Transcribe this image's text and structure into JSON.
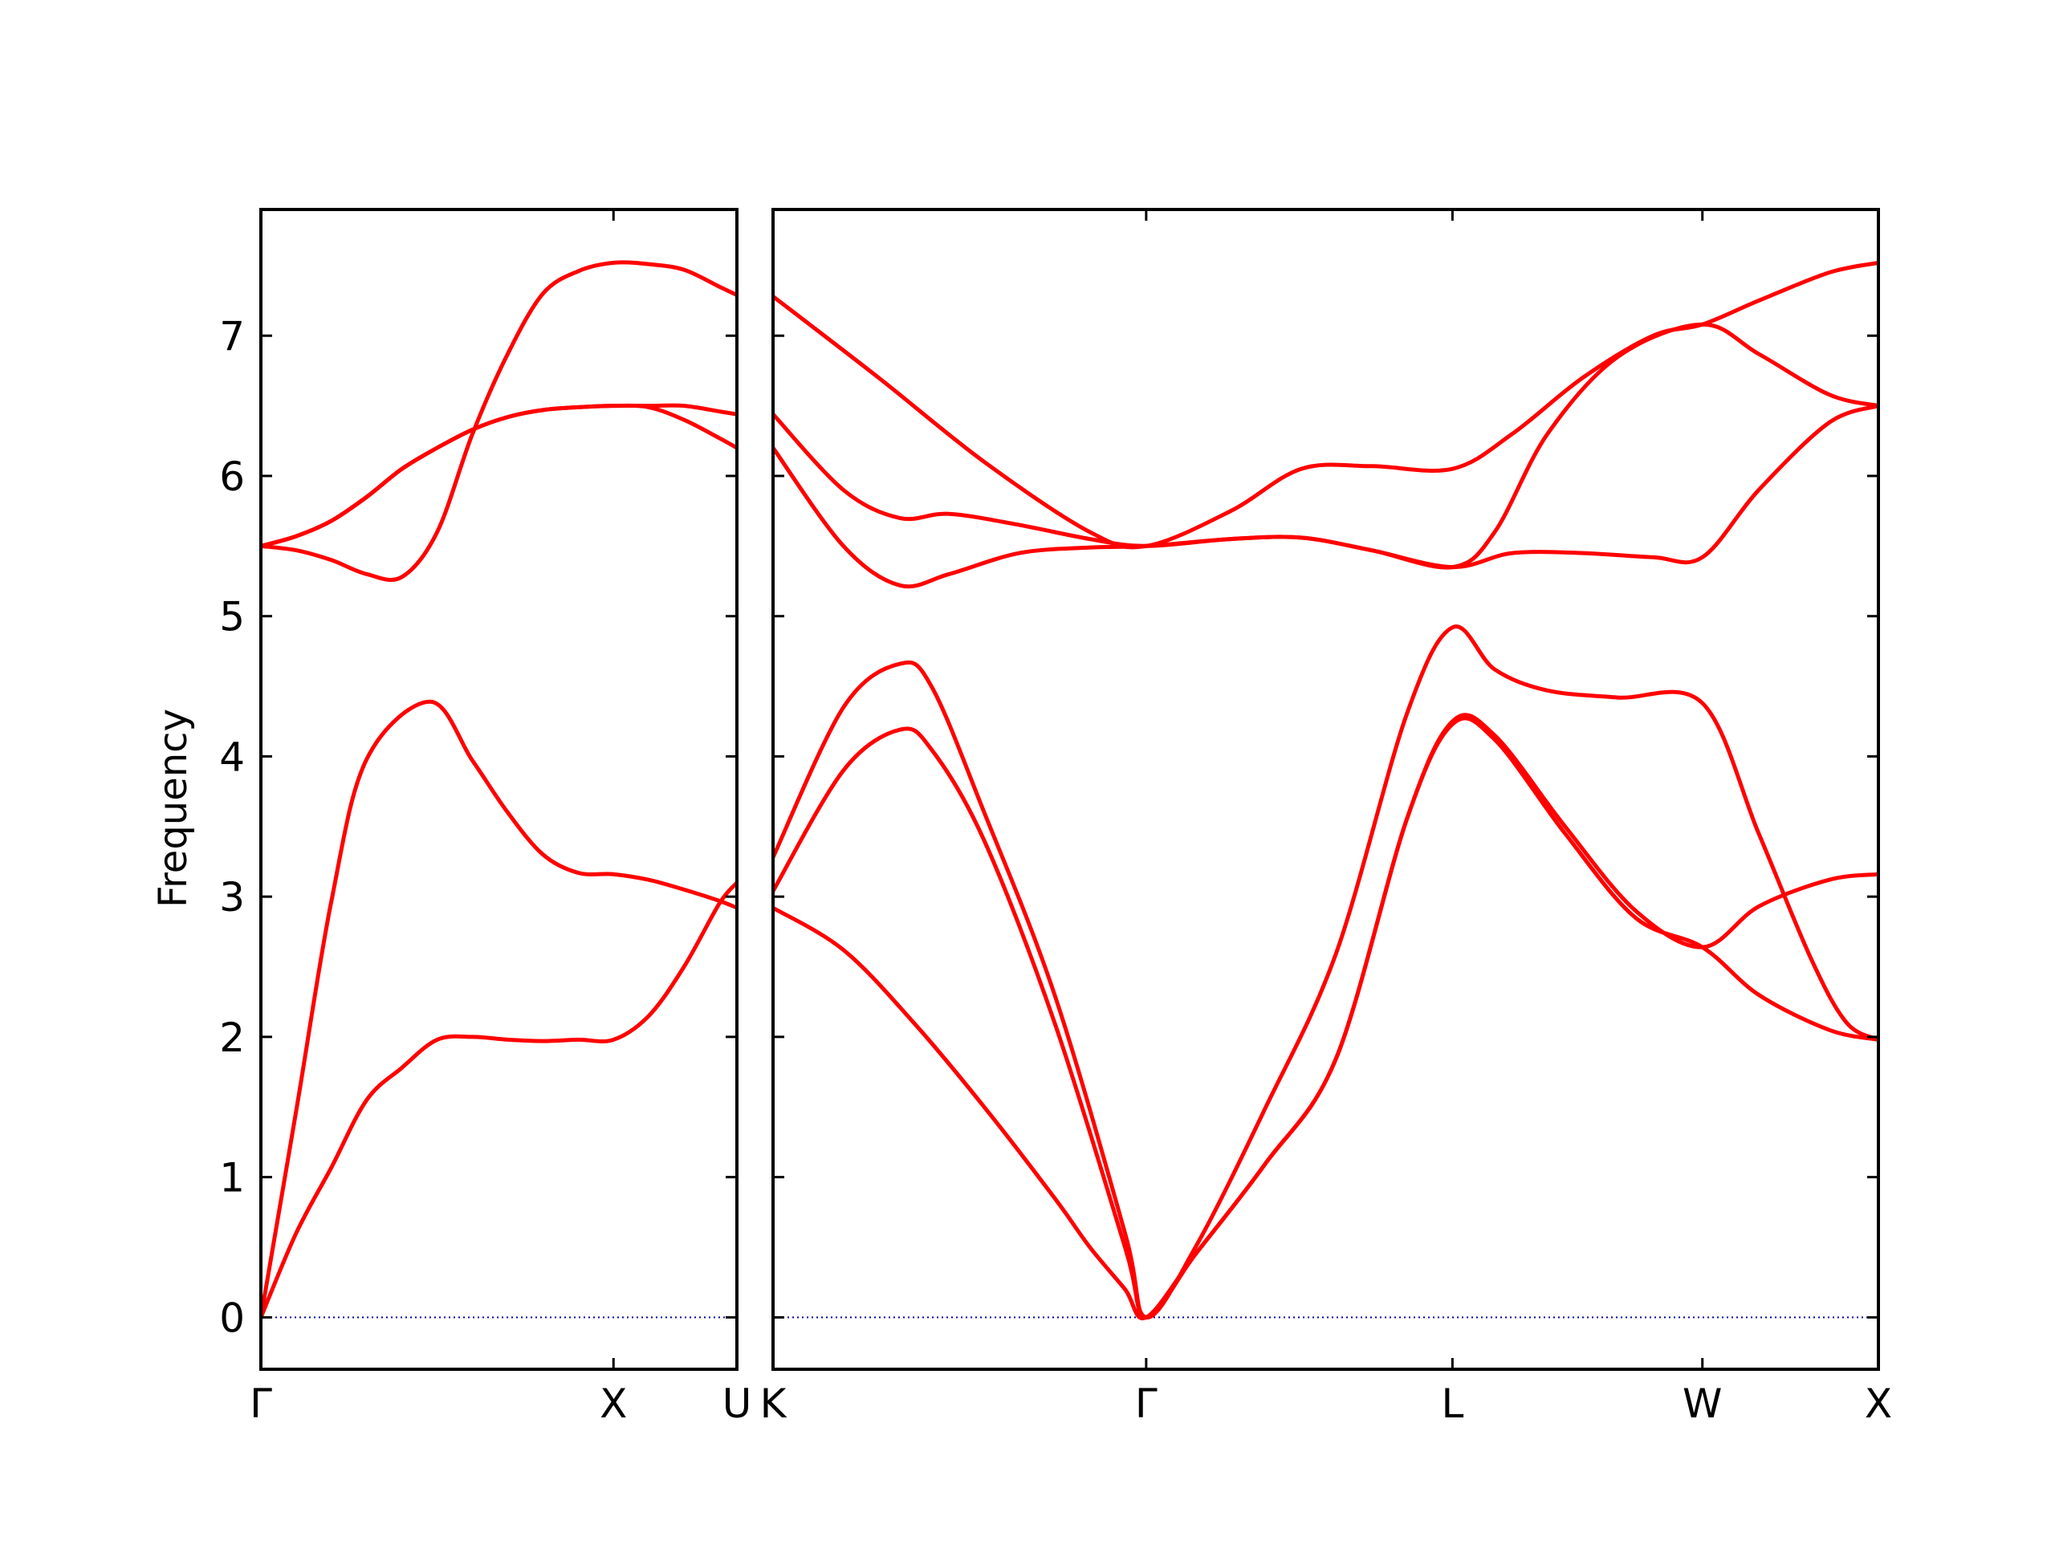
{
  "chart_data": {
    "type": "line",
    "title": "",
    "ylabel": "Frequency",
    "xlabel": "",
    "ylim": [
      -0.37,
      7.9
    ],
    "yticks": [
      0,
      1,
      2,
      3,
      4,
      5,
      6,
      7
    ],
    "grid": false,
    "legend": "none",
    "band_color": "#ff0000",
    "zero_line_color": "#0000aa",
    "segments": [
      {
        "xlim": [
          0,
          1.35
        ],
        "xticks": [
          {
            "x": 0,
            "label": "Γ"
          },
          {
            "x": 1.0,
            "label": "X"
          },
          {
            "x": 1.35,
            "label": "U"
          }
        ],
        "bands": [
          [
            [
              0,
              0
            ],
            [
              0.1,
              0.6
            ],
            [
              0.2,
              1.07
            ],
            [
              0.3,
              1.55
            ],
            [
              0.4,
              1.78
            ],
            [
              0.5,
              1.98
            ],
            [
              0.6,
              2.0
            ],
            [
              0.7,
              1.98
            ],
            [
              0.8,
              1.97
            ],
            [
              0.9,
              1.98
            ],
            [
              1.0,
              1.98
            ],
            [
              1.1,
              2.15
            ],
            [
              1.2,
              2.5
            ],
            [
              1.3,
              2.95
            ],
            [
              1.35,
              3.1
            ]
          ],
          [
            [
              0,
              0
            ],
            [
              0.1,
              1.47
            ],
            [
              0.2,
              2.97
            ],
            [
              0.3,
              3.98
            ],
            [
              0.48,
              4.39
            ],
            [
              0.6,
              3.97
            ],
            [
              0.7,
              3.6
            ],
            [
              0.8,
              3.3
            ],
            [
              0.9,
              3.17
            ],
            [
              1.0,
              3.16
            ],
            [
              1.1,
              3.12
            ],
            [
              1.2,
              3.05
            ],
            [
              1.3,
              2.97
            ],
            [
              1.35,
              2.92
            ]
          ],
          [
            [
              0,
              5.5
            ],
            [
              0.1,
              5.47
            ],
            [
              0.2,
              5.4
            ],
            [
              0.3,
              5.3
            ],
            [
              0.4,
              5.28
            ],
            [
              0.5,
              5.6
            ],
            [
              0.6,
              6.3
            ],
            [
              0.7,
              6.87
            ],
            [
              0.8,
              7.3
            ],
            [
              0.9,
              7.46
            ],
            [
              1.0,
              7.52
            ],
            [
              1.1,
              7.51
            ],
            [
              1.2,
              7.47
            ],
            [
              1.3,
              7.35
            ],
            [
              1.35,
              7.29
            ]
          ],
          [
            [
              0,
              5.5
            ],
            [
              0.1,
              5.57
            ],
            [
              0.2,
              5.68
            ],
            [
              0.3,
              5.85
            ],
            [
              0.4,
              6.05
            ],
            [
              0.5,
              6.2
            ],
            [
              0.6,
              6.33
            ],
            [
              0.7,
              6.42
            ],
            [
              0.8,
              6.47
            ],
            [
              0.9,
              6.49
            ],
            [
              1.0,
              6.5
            ],
            [
              1.1,
              6.5
            ],
            [
              1.2,
              6.5
            ],
            [
              1.3,
              6.46
            ],
            [
              1.35,
              6.44
            ]
          ],
          [
            [
              0,
              5.5
            ],
            [
              0.1,
              5.57
            ],
            [
              0.2,
              5.68
            ],
            [
              0.3,
              5.85
            ],
            [
              0.4,
              6.05
            ],
            [
              0.5,
              6.2
            ],
            [
              0.6,
              6.33
            ],
            [
              0.7,
              6.42
            ],
            [
              0.8,
              6.47
            ],
            [
              0.9,
              6.49
            ],
            [
              1.0,
              6.5
            ],
            [
              1.1,
              6.49
            ],
            [
              1.2,
              6.4
            ],
            [
              1.3,
              6.27
            ],
            [
              1.35,
              6.2
            ]
          ]
        ]
      },
      {
        "xlim": [
          0,
          3.14
        ],
        "xticks": [
          {
            "x": 0,
            "label": "K"
          },
          {
            "x": 1.06,
            "label": "Γ"
          },
          {
            "x": 1.93,
            "label": "L"
          },
          {
            "x": 2.64,
            "label": "W"
          },
          {
            "x": 3.14,
            "label": "X"
          }
        ],
        "bands": [
          [
            [
              0,
              2.92
            ],
            [
              0.2,
              2.62
            ],
            [
              0.4,
              2.1
            ],
            [
              0.6,
              1.5
            ],
            [
              0.8,
              0.85
            ],
            [
              0.9,
              0.5
            ],
            [
              1.0,
              0.2
            ],
            [
              1.06,
              0
            ],
            [
              1.2,
              0.45
            ],
            [
              1.4,
              1.1
            ],
            [
              1.6,
              1.85
            ],
            [
              1.8,
              3.55
            ],
            [
              1.93,
              4.23
            ],
            [
              2.05,
              4.12
            ],
            [
              2.25,
              3.45
            ],
            [
              2.45,
              2.85
            ],
            [
              2.64,
              2.64
            ],
            [
              2.8,
              2.3
            ],
            [
              3.0,
              2.05
            ],
            [
              3.14,
              1.98
            ]
          ],
          [
            [
              0,
              3.04
            ],
            [
              0.2,
              3.9
            ],
            [
              0.36,
              4.19
            ],
            [
              0.45,
              4.05
            ],
            [
              0.6,
              3.4
            ],
            [
              0.8,
              2.1
            ],
            [
              1.0,
              0.5
            ],
            [
              1.06,
              0
            ],
            [
              1.2,
              0.45
            ],
            [
              1.4,
              1.1
            ],
            [
              1.6,
              1.85
            ],
            [
              1.8,
              3.55
            ],
            [
              1.93,
              4.25
            ],
            [
              2.05,
              4.15
            ],
            [
              2.25,
              3.5
            ],
            [
              2.45,
              2.9
            ],
            [
              2.64,
              2.64
            ],
            [
              2.8,
              2.93
            ],
            [
              3.0,
              3.12
            ],
            [
              3.14,
              3.16
            ]
          ],
          [
            [
              0,
              3.28
            ],
            [
              0.2,
              4.35
            ],
            [
              0.36,
              4.66
            ],
            [
              0.45,
              4.5
            ],
            [
              0.6,
              3.6
            ],
            [
              0.8,
              2.3
            ],
            [
              1.0,
              0.6
            ],
            [
              1.06,
              0
            ],
            [
              1.2,
              0.5
            ],
            [
              1.4,
              1.5
            ],
            [
              1.6,
              2.6
            ],
            [
              1.8,
              4.3
            ],
            [
              1.93,
              4.92
            ],
            [
              2.05,
              4.62
            ],
            [
              2.2,
              4.47
            ],
            [
              2.4,
              4.42
            ],
            [
              2.64,
              4.38
            ],
            [
              2.8,
              3.45
            ],
            [
              2.95,
              2.55
            ],
            [
              3.05,
              2.1
            ],
            [
              3.14,
              1.98
            ]
          ],
          [
            [
              0,
              6.2
            ],
            [
              0.2,
              5.5
            ],
            [
              0.36,
              5.22
            ],
            [
              0.5,
              5.3
            ],
            [
              0.7,
              5.45
            ],
            [
              0.9,
              5.49
            ],
            [
              1.06,
              5.5
            ],
            [
              1.3,
              5.55
            ],
            [
              1.5,
              5.56
            ],
            [
              1.7,
              5.47
            ],
            [
              1.93,
              5.35
            ],
            [
              2.1,
              5.45
            ],
            [
              2.3,
              5.45
            ],
            [
              2.5,
              5.42
            ],
            [
              2.64,
              5.42
            ],
            [
              2.8,
              5.9
            ],
            [
              3.0,
              6.38
            ],
            [
              3.14,
              6.5
            ]
          ],
          [
            [
              0,
              6.44
            ],
            [
              0.2,
              5.9
            ],
            [
              0.36,
              5.7
            ],
            [
              0.5,
              5.73
            ],
            [
              0.7,
              5.65
            ],
            [
              0.9,
              5.55
            ],
            [
              1.06,
              5.5
            ],
            [
              1.3,
              5.55
            ],
            [
              1.5,
              5.56
            ],
            [
              1.7,
              5.47
            ],
            [
              1.93,
              5.35
            ],
            [
              2.05,
              5.6
            ],
            [
              2.2,
              6.3
            ],
            [
              2.4,
              6.85
            ],
            [
              2.64,
              7.08
            ],
            [
              2.8,
              6.87
            ],
            [
              3.0,
              6.58
            ],
            [
              3.14,
              6.5
            ]
          ],
          [
            [
              0,
              7.28
            ],
            [
              0.3,
              6.7
            ],
            [
              0.6,
              6.1
            ],
            [
              0.9,
              5.6
            ],
            [
              1.06,
              5.5
            ],
            [
              1.3,
              5.75
            ],
            [
              1.5,
              6.05
            ],
            [
              1.7,
              6.07
            ],
            [
              1.93,
              6.05
            ],
            [
              2.1,
              6.3
            ],
            [
              2.3,
              6.7
            ],
            [
              2.5,
              7.0
            ],
            [
              2.64,
              7.08
            ],
            [
              2.8,
              7.25
            ],
            [
              3.0,
              7.45
            ],
            [
              3.14,
              7.52
            ]
          ]
        ]
      }
    ]
  }
}
